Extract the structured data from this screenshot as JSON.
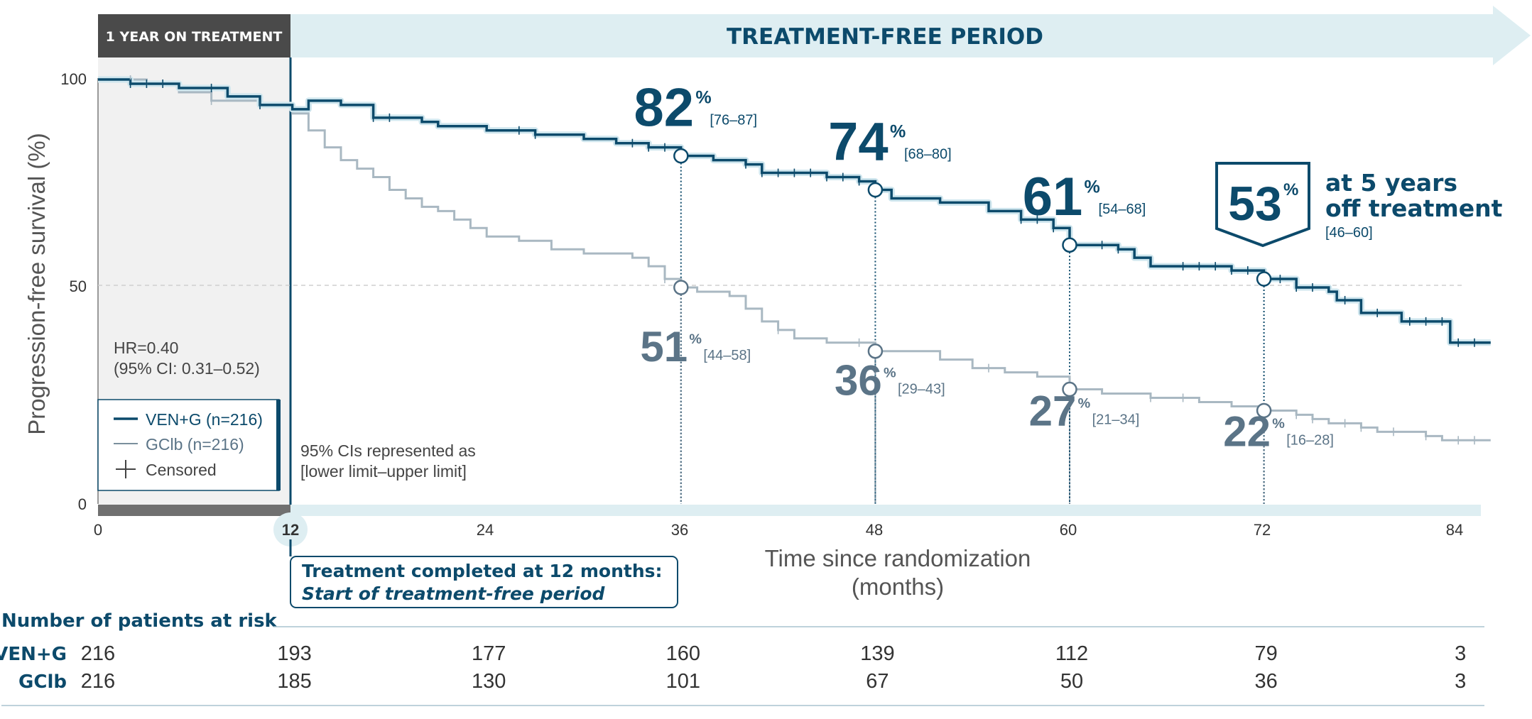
{
  "colors": {
    "ven_line": "#0c4a6b",
    "gclb_line": "#a9b8c2",
    "header_dark": "#4a4a4a",
    "header_light": "#deeef2",
    "accent": "#0c4a6b",
    "grey_label": "#5b7487"
  },
  "header": {
    "on_treatment": "1 YEAR ON TREATMENT",
    "treatment_free": "TREATMENT-FREE PERIOD"
  },
  "hr_text": {
    "line1": "HR=0.40",
    "line2": "(95% CI: 0.31–0.52)"
  },
  "legend": {
    "ven": "VEN+G (n=216)",
    "gclb": "GClb (n=216)",
    "censored": "Censored"
  },
  "ci_note": {
    "line1": "95% CIs represented as",
    "line2": "[lower limit–upper limit]"
  },
  "callout": {
    "pct": "53",
    "pct_sign": "%",
    "line1": "at 5 years",
    "line2": "off treatment",
    "ci": "[46–60]"
  },
  "treatment_box": {
    "line1": "Treatment completed at 12 months:",
    "line2": "Start of treatment-free period"
  },
  "risk_table": {
    "title": "Number of patients at risk",
    "rows": [
      {
        "label": "VEN+G",
        "values": [
          "216",
          "193",
          "177",
          "160",
          "139",
          "112",
          "79",
          "3"
        ]
      },
      {
        "label": "GClb",
        "values": [
          "216",
          "185",
          "130",
          "101",
          "67",
          "50",
          "36",
          "3"
        ]
      }
    ]
  },
  "chart_data": {
    "type": "line",
    "title": "",
    "xlabel": "Time since randomization (months)",
    "ylabel": "Progression-free survival (%)",
    "xlim": [
      0,
      86
    ],
    "ylim": [
      0,
      100
    ],
    "x_ticks": [
      "0",
      "12",
      "24",
      "36",
      "48",
      "60",
      "72",
      "84"
    ],
    "y_ticks": [
      "0",
      "50",
      "100"
    ],
    "reference_line_y": 50,
    "series": [
      {
        "name": "VEN+G (n=216)",
        "steps": [
          [
            0,
            100
          ],
          [
            2,
            99
          ],
          [
            5,
            98
          ],
          [
            8,
            96
          ],
          [
            10,
            94
          ],
          [
            12,
            93
          ],
          [
            13,
            95
          ],
          [
            15,
            94
          ],
          [
            17,
            91
          ],
          [
            20,
            90
          ],
          [
            21,
            89
          ],
          [
            24,
            88
          ],
          [
            27,
            87
          ],
          [
            30,
            86
          ],
          [
            32,
            85
          ],
          [
            34,
            84
          ],
          [
            36,
            82
          ],
          [
            38,
            81
          ],
          [
            40,
            80
          ],
          [
            41,
            78
          ],
          [
            45,
            77
          ],
          [
            47,
            76
          ],
          [
            48,
            74
          ],
          [
            49,
            72
          ],
          [
            52,
            71
          ],
          [
            55,
            69
          ],
          [
            57,
            67
          ],
          [
            59,
            65
          ],
          [
            60,
            61
          ],
          [
            63,
            60
          ],
          [
            64,
            58
          ],
          [
            65,
            56
          ],
          [
            70,
            55
          ],
          [
            72,
            53
          ],
          [
            74,
            51
          ],
          [
            76,
            50
          ],
          [
            76.5,
            48
          ],
          [
            78,
            45
          ],
          [
            80,
            45
          ],
          [
            80.5,
            43
          ],
          [
            83,
            43
          ],
          [
            83.5,
            38
          ],
          [
            86,
            38
          ]
        ],
        "censor_x": [
          2,
          3,
          4,
          7,
          10,
          17,
          18,
          26,
          27,
          33,
          34,
          35,
          40,
          41,
          42,
          43,
          44,
          45,
          46,
          47,
          57,
          58,
          59,
          60,
          62,
          63,
          67,
          68,
          69,
          70,
          71,
          73,
          74,
          75,
          77,
          79,
          81,
          82,
          83,
          84,
          85
        ]
      },
      {
        "name": "GClb (n=216)",
        "steps": [
          [
            0,
            100
          ],
          [
            3,
            99
          ],
          [
            5,
            97
          ],
          [
            7,
            95
          ],
          [
            10,
            94
          ],
          [
            12,
            92
          ],
          [
            13,
            88
          ],
          [
            14,
            84
          ],
          [
            15,
            81
          ],
          [
            16,
            79
          ],
          [
            17,
            77
          ],
          [
            18,
            74
          ],
          [
            19,
            72
          ],
          [
            20,
            70
          ],
          [
            21,
            69
          ],
          [
            22,
            67
          ],
          [
            23,
            65
          ],
          [
            24,
            63
          ],
          [
            26,
            62
          ],
          [
            28,
            60
          ],
          [
            30,
            59
          ],
          [
            33,
            58
          ],
          [
            34,
            56
          ],
          [
            35,
            53
          ],
          [
            36,
            51
          ],
          [
            37,
            50
          ],
          [
            39,
            49
          ],
          [
            40,
            46
          ],
          [
            41,
            43
          ],
          [
            42,
            41
          ],
          [
            43,
            39
          ],
          [
            45,
            38
          ],
          [
            48,
            36
          ],
          [
            52,
            34
          ],
          [
            54,
            32
          ],
          [
            56,
            31
          ],
          [
            58,
            30
          ],
          [
            60,
            27
          ],
          [
            62,
            26
          ],
          [
            65,
            25
          ],
          [
            68,
            24
          ],
          [
            70,
            23
          ],
          [
            72,
            22
          ],
          [
            74,
            21
          ],
          [
            75,
            20
          ],
          [
            76,
            19
          ],
          [
            78,
            18
          ],
          [
            79,
            17
          ],
          [
            82,
            16
          ],
          [
            83,
            15
          ],
          [
            86,
            15
          ]
        ],
        "censor_x": [
          2,
          3,
          4,
          7,
          10,
          35,
          36,
          42,
          47,
          55,
          65,
          67,
          74,
          75,
          77,
          78,
          80,
          82,
          84,
          85
        ]
      }
    ],
    "annotations": [
      {
        "series": "VEN+G",
        "x": 36,
        "y": 82,
        "text": "82",
        "ci": "[76–87]"
      },
      {
        "series": "VEN+G",
        "x": 48,
        "y": 74,
        "text": "74",
        "ci": "[68–80]"
      },
      {
        "series": "VEN+G",
        "x": 60,
        "y": 61,
        "text": "61",
        "ci": "[54–68]"
      },
      {
        "series": "VEN+G",
        "x": 72,
        "y": 53,
        "text": "53",
        "ci": "[46–60]"
      },
      {
        "series": "GClb",
        "x": 36,
        "y": 51,
        "text": "51",
        "ci": "[44–58]"
      },
      {
        "series": "GClb",
        "x": 48,
        "y": 36,
        "text": "36",
        "ci": "[29–43]"
      },
      {
        "series": "GClb",
        "x": 60,
        "y": 27,
        "text": "27",
        "ci": "[21–34]"
      },
      {
        "series": "GClb",
        "x": 72,
        "y": 22,
        "text": "22",
        "ci": "[16–28]"
      }
    ]
  }
}
